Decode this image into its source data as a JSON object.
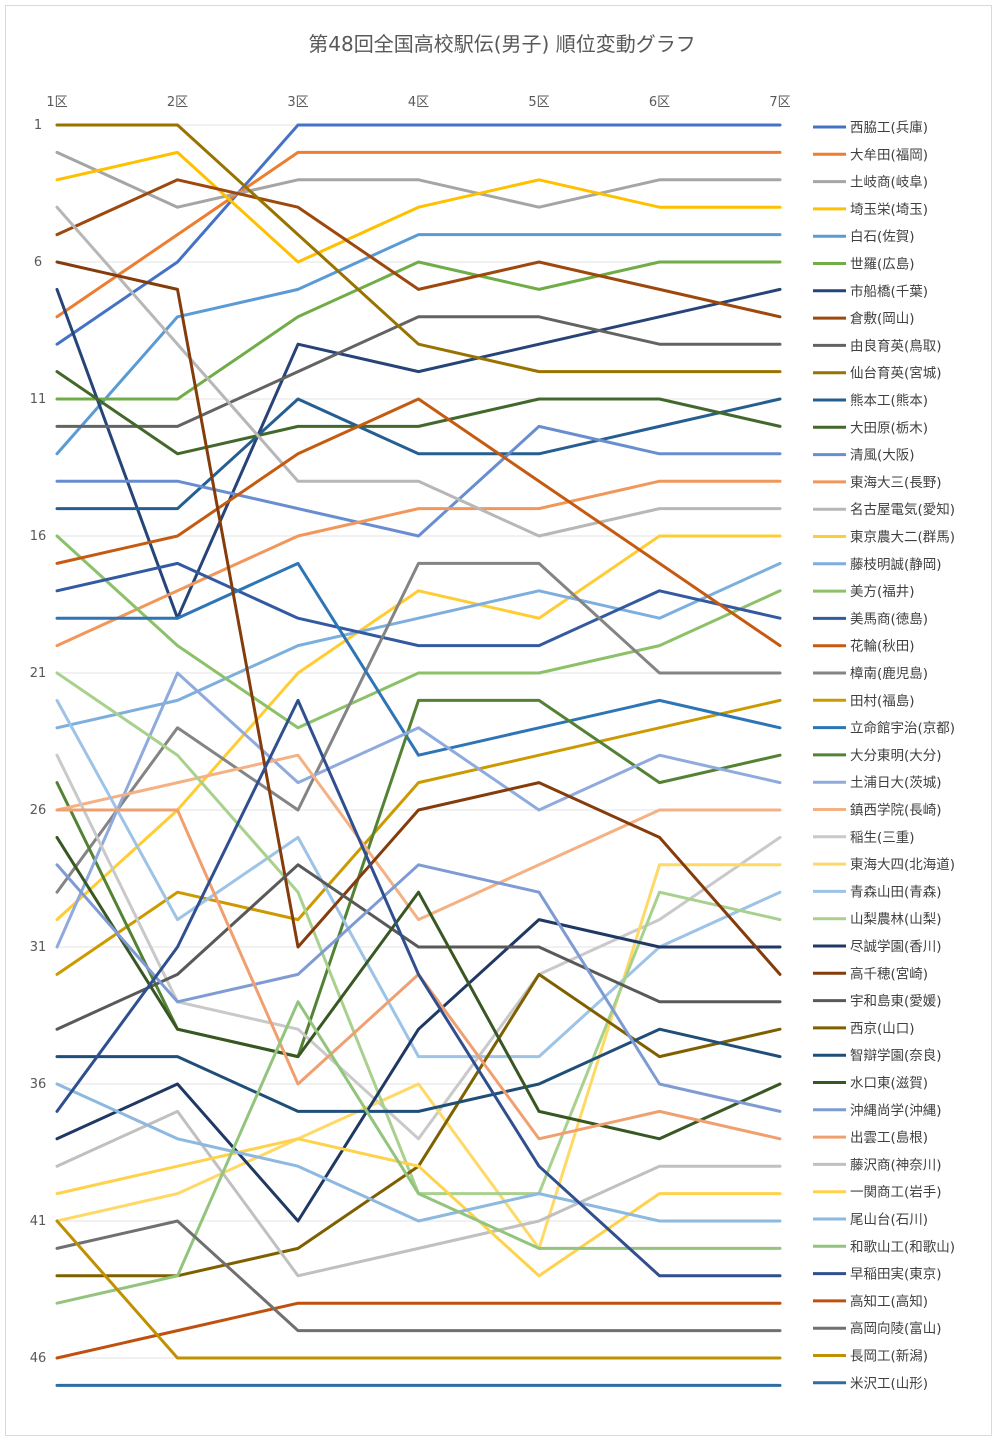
{
  "chart_data": {
    "type": "line",
    "title": "第48回全国高校駅伝(男子) 順位変動グラフ",
    "xlabel": "",
    "ylabel": "",
    "categories": [
      "1区",
      "2区",
      "3区",
      "4区",
      "5区",
      "6区",
      "7区"
    ],
    "y_ticks": [
      "1",
      "6",
      "11",
      "16",
      "21",
      "26",
      "31",
      "36",
      "41",
      "46"
    ],
    "ylim": [
      1,
      47
    ],
    "y_inverted": true,
    "grid": true,
    "legend_position": "right",
    "series": [
      {
        "name": "西脇工(兵庫)",
        "color": "#4472C4",
        "values": [
          9,
          6,
          1,
          1,
          1,
          1,
          1
        ]
      },
      {
        "name": "大牟田(福岡)",
        "color": "#ED7D31",
        "values": [
          8,
          5,
          2,
          2,
          2,
          2,
          2
        ]
      },
      {
        "name": "土岐商(岐阜)",
        "color": "#A5A5A5",
        "values": [
          2,
          4,
          3,
          3,
          4,
          3,
          3
        ]
      },
      {
        "name": "埼玉栄(埼玉)",
        "color": "#FFC000",
        "values": [
          3,
          2,
          6,
          4,
          3,
          4,
          4
        ]
      },
      {
        "name": "白石(佐賀)",
        "color": "#5B9BD5",
        "values": [
          13,
          8,
          7,
          5,
          5,
          5,
          5
        ]
      },
      {
        "name": "世羅(広島)",
        "color": "#70AD47",
        "values": [
          11,
          11,
          8,
          6,
          7,
          6,
          6
        ]
      },
      {
        "name": "市船橋(千葉)",
        "color": "#264478",
        "values": [
          7,
          19,
          9,
          10,
          9,
          8,
          7
        ]
      },
      {
        "name": "倉敷(岡山)",
        "color": "#9E480E",
        "values": [
          5,
          3,
          4,
          7,
          6,
          7,
          8
        ]
      },
      {
        "name": "由良育英(鳥取)",
        "color": "#636363",
        "values": [
          12,
          12,
          10,
          8,
          8,
          9,
          9
        ]
      },
      {
        "name": "仙台育英(宮城)",
        "color": "#997300",
        "values": [
          1,
          1,
          5,
          9,
          10,
          10,
          10
        ]
      },
      {
        "name": "熊本工(熊本)",
        "color": "#255E91",
        "values": [
          15,
          15,
          11,
          13,
          13,
          12,
          11
        ]
      },
      {
        "name": "大田原(栃木)",
        "color": "#43682B",
        "values": [
          10,
          13,
          12,
          12,
          11,
          11,
          12
        ]
      },
      {
        "name": "清風(大阪)",
        "color": "#698ED0",
        "values": [
          14,
          14,
          15,
          16,
          12,
          13,
          13
        ]
      },
      {
        "name": "東海大三(長野)",
        "color": "#F1975A",
        "values": [
          20,
          18,
          16,
          15,
          15,
          14,
          14
        ]
      },
      {
        "name": "名古屋電気(愛知)",
        "color": "#B7B7B7",
        "values": [
          4,
          9,
          14,
          14,
          16,
          15,
          15
        ]
      },
      {
        "name": "東京農大二(群馬)",
        "color": "#FFCD33",
        "values": [
          30,
          26,
          21,
          18,
          19,
          16,
          16
        ]
      },
      {
        "name": "藤枝明誠(静岡)",
        "color": "#7CAFDD",
        "values": [
          23,
          22,
          20,
          19,
          18,
          19,
          17
        ]
      },
      {
        "name": "美方(福井)",
        "color": "#8CC168",
        "values": [
          16,
          20,
          23,
          21,
          21,
          20,
          18
        ]
      },
      {
        "name": "美馬商(徳島)",
        "color": "#335AA1",
        "values": [
          18,
          17,
          19,
          20,
          20,
          18,
          19
        ]
      },
      {
        "name": "花輪(秋田)",
        "color": "#C55A11",
        "values": [
          17,
          16,
          13,
          11,
          14,
          17,
          20
        ]
      },
      {
        "name": "樟南(鹿児島)",
        "color": "#848484",
        "values": [
          29,
          23,
          26,
          17,
          17,
          21,
          21
        ]
      },
      {
        "name": "田村(福島)",
        "color": "#CC9A00",
        "values": [
          32,
          29,
          30,
          25,
          24,
          23,
          22
        ]
      },
      {
        "name": "立命館宇治(京都)",
        "color": "#2E75B6",
        "values": [
          19,
          19,
          17,
          24,
          23,
          22,
          23
        ]
      },
      {
        "name": "大分東明(大分)",
        "color": "#548235",
        "values": [
          25,
          34,
          35,
          22,
          22,
          25,
          24
        ]
      },
      {
        "name": "土浦日大(茨城)",
        "color": "#8FAADC",
        "values": [
          31,
          21,
          25,
          23,
          26,
          24,
          25
        ]
      },
      {
        "name": "鎮西学院(長崎)",
        "color": "#F4B183",
        "values": [
          26,
          25,
          24,
          30,
          28,
          26,
          26
        ]
      },
      {
        "name": "稲生(三重)",
        "color": "#C9C9C9",
        "values": [
          24,
          33,
          34,
          38,
          32,
          30,
          27
        ]
      },
      {
        "name": "東海大四(北海道)",
        "color": "#FFD966",
        "values": [
          41,
          40,
          38,
          36,
          42,
          28,
          28
        ]
      },
      {
        "name": "青森山田(青森)",
        "color": "#9DC3E6",
        "values": [
          22,
          30,
          27,
          35,
          35,
          31,
          29
        ]
      },
      {
        "name": "山梨農林(山梨)",
        "color": "#A9D18E",
        "values": [
          21,
          24,
          29,
          40,
          40,
          29,
          30
        ]
      },
      {
        "name": "尽誠学園(香川)",
        "color": "#203864",
        "values": [
          38,
          36,
          41,
          34,
          30,
          31,
          31
        ]
      },
      {
        "name": "高千穂(宮崎)",
        "color": "#843C0C",
        "values": [
          6,
          7,
          31,
          26,
          25,
          27,
          32
        ]
      },
      {
        "name": "宇和島東(愛媛)",
        "color": "#595959",
        "values": [
          34,
          32,
          28,
          31,
          31,
          33,
          33
        ]
      },
      {
        "name": "西京(山口)",
        "color": "#7F6000",
        "values": [
          43,
          43,
          42,
          39,
          32,
          35,
          34
        ]
      },
      {
        "name": "智辯学園(奈良)",
        "color": "#1F4E79",
        "values": [
          35,
          35,
          37,
          37,
          36,
          34,
          35
        ]
      },
      {
        "name": "水口東(滋賀)",
        "color": "#385723",
        "values": [
          27,
          34,
          35,
          29,
          37,
          38,
          36
        ]
      },
      {
        "name": "沖縄尚学(沖縄)",
        "color": "#7F9BD4",
        "values": [
          28,
          33,
          32,
          28,
          29,
          36,
          37
        ]
      },
      {
        "name": "出雲工(島根)",
        "color": "#F0A070",
        "values": [
          26,
          26,
          36,
          32,
          38,
          37,
          38
        ]
      },
      {
        "name": "藤沢商(神奈川)",
        "color": "#C0C0C0",
        "values": [
          39,
          37,
          43,
          42,
          41,
          39,
          39
        ]
      },
      {
        "name": "一関商工(岩手)",
        "color": "#FFD24D",
        "values": [
          40,
          39,
          38,
          39,
          43,
          40,
          40
        ]
      },
      {
        "name": "尾山台(石川)",
        "color": "#8DB8E0",
        "values": [
          36,
          38,
          39,
          41,
          40,
          41,
          41
        ]
      },
      {
        "name": "和歌山工(和歌山)",
        "color": "#93C47D",
        "values": [
          44,
          43,
          33,
          40,
          42,
          42,
          42
        ]
      },
      {
        "name": "早稲田実(東京)",
        "color": "#2F4F8F",
        "values": [
          37,
          31,
          22,
          32,
          39,
          43,
          43
        ]
      },
      {
        "name": "高知工(高知)",
        "color": "#C0500E",
        "values": [
          46,
          45,
          44,
          44,
          44,
          44,
          44
        ]
      },
      {
        "name": "高岡向陵(富山)",
        "color": "#707070",
        "values": [
          42,
          41,
          45,
          45,
          45,
          45,
          45
        ]
      },
      {
        "name": "長岡工(新潟)",
        "color": "#BF9000",
        "values": [
          41,
          46,
          46,
          46,
          46,
          46,
          46
        ]
      },
      {
        "name": "米沢工(山形)",
        "color": "#2E6DA4",
        "values": [
          47,
          47,
          47,
          47,
          47,
          47,
          47
        ]
      }
    ]
  }
}
